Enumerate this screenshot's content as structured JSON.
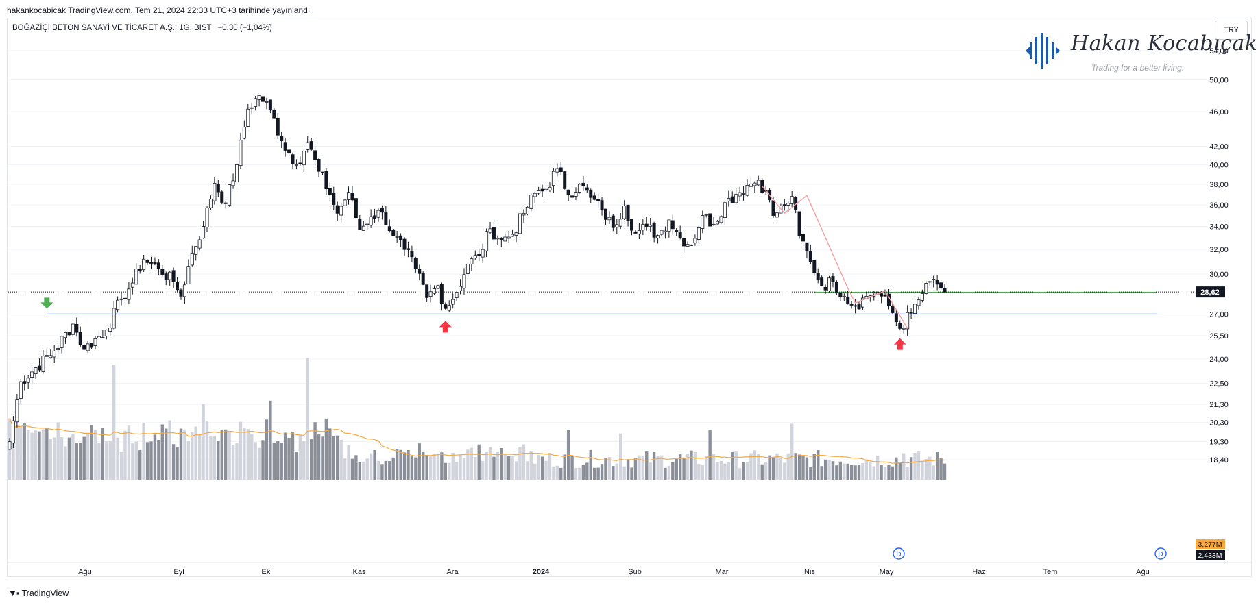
{
  "header": {
    "publish_line": "hakankocabicak TradingView.com, Tem 21, 2024 22:33 UTC+3 tarihinde yayınlandı"
  },
  "symbol": {
    "title": "BOĞAZİÇİ BETON SANAYİ VE TİCARET A.Ş., 1G, BIST",
    "change": "−0,30 (−1,04%)"
  },
  "currency_button": {
    "label": "TRY"
  },
  "watermark": {
    "name": "Hakan Kocabıçak",
    "tagline": "Trading for a better living."
  },
  "footer": {
    "brand": "TradingView"
  },
  "colors": {
    "candle_up_fill": "#ffffff",
    "candle_down_fill": "#131722",
    "candle_border": "#131722",
    "volume_light": "#d1d4dc",
    "volume_dark": "#8b8f99",
    "volume_ma": "#f7a73c",
    "support_line": "#2c3e8c",
    "resistance_line": "#4caf50",
    "pattern_line": "#f4a0a0",
    "arrow_up": "#f23645",
    "arrow_down": "#4caf50",
    "price_badge": "#131722",
    "volume_ma_badge": "#f7a73c",
    "volume_badge": "#131722",
    "dividend_marker": "#2962ff",
    "logo_blue": "#1f5aa6"
  },
  "chart_data": {
    "type": "candlestick",
    "timeframe": "1G",
    "price_scale": "log",
    "y_ticks": [
      54.0,
      50.0,
      46.0,
      42.0,
      40.0,
      38.0,
      36.0,
      34.0,
      32.0,
      30.0,
      27.0,
      25.5,
      24.0,
      22.5,
      21.3,
      20.3,
      19.3,
      18.4
    ],
    "y_tick_labels": [
      "54,00",
      "50,00",
      "46,00",
      "42,00",
      "40,00",
      "38,00",
      "36,00",
      "34,00",
      "32,00",
      "30,00",
      "27,00",
      "25,50",
      "24,00",
      "22,50",
      "21,30",
      "20,30",
      "19,30",
      "18,40"
    ],
    "x_labels": [
      "Ağu",
      "Eyl",
      "Eki",
      "Kas",
      "Ara",
      "2024",
      "Şub",
      "Mar",
      "Nis",
      "May",
      "Haz",
      "Tem",
      "Ağu"
    ],
    "x_label_bold": [
      false,
      false,
      false,
      false,
      false,
      true,
      false,
      false,
      false,
      false,
      false,
      false,
      false
    ],
    "last_price": 28.62,
    "last_price_label": "28,62",
    "volume_ma_label": "3,277M",
    "volume_label": "2,433M",
    "dividend_marker_label": "D",
    "support_level": 27.0,
    "resistance_level": 28.6,
    "dotted_last_price_line": true,
    "keypoints": [
      {
        "i": 0,
        "p": 19.3
      },
      {
        "i": 3,
        "p": 22.6
      },
      {
        "i": 12,
        "p": 24.5
      },
      {
        "i": 17,
        "p": 26.3
      },
      {
        "i": 20,
        "p": 24.6
      },
      {
        "i": 26,
        "p": 25.9
      },
      {
        "i": 30,
        "p": 28.1
      },
      {
        "i": 33,
        "p": 29.3
      },
      {
        "i": 36,
        "p": 31.2
      },
      {
        "i": 40,
        "p": 30.4
      },
      {
        "i": 44,
        "p": 29.4
      },
      {
        "i": 46,
        "p": 28.3
      },
      {
        "i": 49,
        "p": 31.7
      },
      {
        "i": 52,
        "p": 34.0
      },
      {
        "i": 55,
        "p": 38.1
      },
      {
        "i": 58,
        "p": 36.1
      },
      {
        "i": 61,
        "p": 40.0
      },
      {
        "i": 64,
        "p": 46.3
      },
      {
        "i": 67,
        "p": 48.0
      },
      {
        "i": 70,
        "p": 46.2
      },
      {
        "i": 73,
        "p": 42.6
      },
      {
        "i": 77,
        "p": 40.0
      },
      {
        "i": 80,
        "p": 42.4
      },
      {
        "i": 83,
        "p": 39.3
      },
      {
        "i": 86,
        "p": 37.0
      },
      {
        "i": 88,
        "p": 35.2
      },
      {
        "i": 91,
        "p": 37.2
      },
      {
        "i": 94,
        "p": 33.7
      },
      {
        "i": 97,
        "p": 34.9
      },
      {
        "i": 100,
        "p": 35.3
      },
      {
        "i": 103,
        "p": 33.2
      },
      {
        "i": 106,
        "p": 32.0
      },
      {
        "i": 109,
        "p": 30.4
      },
      {
        "i": 112,
        "p": 28.2
      },
      {
        "i": 115,
        "p": 29.1
      },
      {
        "i": 117,
        "p": 27.4
      },
      {
        "i": 120,
        "p": 28.6
      },
      {
        "i": 123,
        "p": 30.8
      },
      {
        "i": 126,
        "p": 31.5
      },
      {
        "i": 129,
        "p": 33.8
      },
      {
        "i": 132,
        "p": 32.8
      },
      {
        "i": 135,
        "p": 33.3
      },
      {
        "i": 138,
        "p": 35.2
      },
      {
        "i": 141,
        "p": 37.1
      },
      {
        "i": 144,
        "p": 37.5
      },
      {
        "i": 147,
        "p": 39.6
      },
      {
        "i": 150,
        "p": 37.0
      },
      {
        "i": 153,
        "p": 38.0
      },
      {
        "i": 156,
        "p": 36.7
      },
      {
        "i": 159,
        "p": 35.5
      },
      {
        "i": 162,
        "p": 33.9
      },
      {
        "i": 165,
        "p": 35.9
      },
      {
        "i": 168,
        "p": 33.4
      },
      {
        "i": 171,
        "p": 34.0
      },
      {
        "i": 174,
        "p": 33.2
      },
      {
        "i": 177,
        "p": 34.6
      },
      {
        "i": 180,
        "p": 33.0
      },
      {
        "i": 183,
        "p": 32.4
      },
      {
        "i": 186,
        "p": 35.0
      },
      {
        "i": 189,
        "p": 34.2
      },
      {
        "i": 192,
        "p": 36.2
      },
      {
        "i": 195,
        "p": 37.0
      },
      {
        "i": 198,
        "p": 37.9
      },
      {
        "i": 201,
        "p": 38.4
      },
      {
        "i": 203,
        "p": 37.3
      },
      {
        "i": 205,
        "p": 35.0
      },
      {
        "i": 208,
        "p": 35.9
      },
      {
        "i": 210,
        "p": 36.8
      },
      {
        "i": 212,
        "p": 33.2
      },
      {
        "i": 215,
        "p": 31.0
      },
      {
        "i": 218,
        "p": 29.1
      },
      {
        "i": 221,
        "p": 29.4
      },
      {
        "i": 224,
        "p": 28.3
      },
      {
        "i": 227,
        "p": 27.6
      },
      {
        "i": 230,
        "p": 28.3
      },
      {
        "i": 233,
        "p": 28.6
      },
      {
        "i": 236,
        "p": 27.6
      },
      {
        "i": 239,
        "p": 26.0
      },
      {
        "i": 242,
        "p": 27.1
      },
      {
        "i": 245,
        "p": 28.5
      },
      {
        "i": 248,
        "p": 29.6
      },
      {
        "i": 250,
        "p": 28.9
      },
      {
        "i": 251,
        "p": 28.62
      }
    ],
    "candle_count": 252,
    "volume_spikes": [
      {
        "i": 28,
        "v": 3.5
      },
      {
        "i": 52,
        "v": 2.3
      },
      {
        "i": 70,
        "v": 2.4
      },
      {
        "i": 80,
        "v": 3.7
      },
      {
        "i": 110,
        "v": 1.1
      },
      {
        "i": 137,
        "v": 1.0
      },
      {
        "i": 150,
        "v": 1.5
      },
      {
        "i": 164,
        "v": 1.4
      },
      {
        "i": 188,
        "v": 1.5
      },
      {
        "i": 210,
        "v": 1.7
      },
      {
        "i": 240,
        "v": 0.8
      }
    ],
    "annotations": [
      {
        "type": "arrow",
        "direction": "down",
        "i": 10,
        "price": 27.0
      },
      {
        "type": "arrow",
        "direction": "up",
        "i": 117,
        "price": 27.0
      },
      {
        "type": "arrow",
        "direction": "up",
        "i": 239,
        "price": 25.8
      },
      {
        "type": "zigzag",
        "points": [
          {
            "i": 202,
            "p": 37.8
          },
          {
            "i": 208,
            "p": 35.2
          },
          {
            "i": 214,
            "p": 36.9
          },
          {
            "i": 225,
            "p": 28.9
          },
          {
            "i": 227,
            "p": 27.8
          },
          {
            "i": 235,
            "p": 28.7
          },
          {
            "i": 241,
            "p": 26.0
          }
        ]
      }
    ]
  }
}
